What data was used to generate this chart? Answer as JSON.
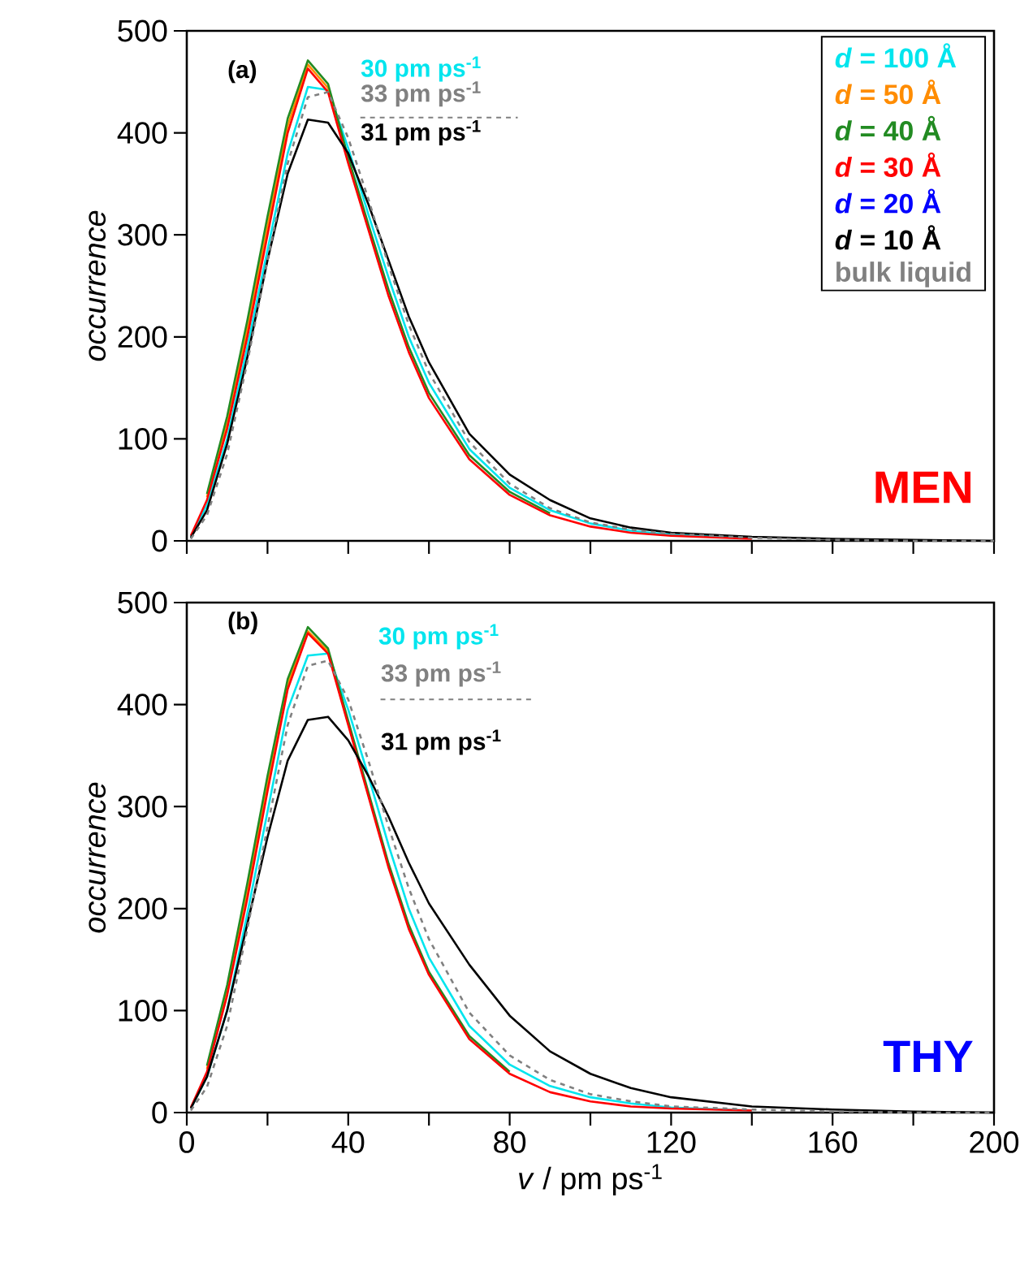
{
  "chart_data": [
    {
      "type": "line",
      "ylabel": "occurrence",
      "x": [
        1,
        5,
        10,
        15,
        20,
        25,
        30,
        35,
        40,
        45,
        50,
        55,
        60,
        70,
        80,
        90,
        100,
        110,
        120,
        140,
        160,
        180,
        200
      ],
      "xlim": [
        0,
        200
      ],
      "ylim": [
        0,
        500
      ],
      "xticks": [
        0,
        {
          "value": 20,
          "label": null
        },
        40,
        {
          "value": 60,
          "label": null
        },
        80,
        {
          "value": 100,
          "label": null
        },
        120,
        {
          "value": 140,
          "label": null
        },
        160,
        {
          "value": 180,
          "label": null
        },
        200
      ],
      "yticks": [
        0,
        100,
        200,
        300,
        400,
        500
      ],
      "tick_labels": "y",
      "legend": "top right",
      "annotations": [
        "(a)",
        "30 pm ps$^{-1}$",
        "33 pm ps$^{-1}$",
        "31 pm ps$^{-1}$",
        "MEN"
      ],
      "series": [
        {
          "name": "*d* = 100 Å",
          "color": "#00e5ee",
          "values": [
            4,
            35,
            100,
            190,
            285,
            380,
            445,
            442,
            385,
            320,
            258,
            200,
            155,
            90,
            52,
            30,
            17,
            10,
            6,
            3,
            null,
            null,
            null
          ]
        },
        {
          "name": "*d* = 50 Å",
          "color": "#ff8c00",
          "values": [
            null,
            43,
            116,
            208,
            309,
            407,
            467,
            444,
            373,
            null,
            null,
            null,
            null,
            null,
            null,
            null,
            null,
            null,
            null,
            null,
            null,
            null,
            null
          ]
        },
        {
          "name": "*d* = 40 Å",
          "color": "#228b22",
          "values": [
            null,
            46,
            122,
            216,
            318,
            414,
            471,
            448,
            376,
            310,
            246,
            190,
            145,
            84,
            48,
            27,
            null,
            null,
            null,
            null,
            null,
            null,
            null
          ]
        },
        {
          "name": "*d* = 30 Å",
          "color": "#ff0000",
          "values": [
            5,
            40,
            110,
            200,
            300,
            400,
            463,
            440,
            370,
            305,
            240,
            185,
            140,
            80,
            45,
            25,
            14,
            8,
            5,
            2,
            null,
            null,
            null
          ]
        },
        {
          "name": "*d* = 20 Å",
          "color": "#0000ff",
          "values": [
            null,
            null,
            null,
            null,
            null,
            null,
            null,
            null,
            null,
            null,
            null,
            null,
            null,
            null,
            null,
            null,
            null,
            null,
            null,
            null,
            null,
            null,
            null
          ]
        },
        {
          "name": "*d* = 10 Å",
          "color": "#000000",
          "values": [
            3,
            30,
            95,
            180,
            275,
            360,
            413,
            410,
            380,
            330,
            275,
            220,
            175,
            105,
            65,
            40,
            22,
            13,
            8,
            4,
            2,
            1,
            0
          ]
        },
        {
          "name": "bulk liquid",
          "color": "#808080",
          "line_style": "dashed",
          "values": [
            2,
            25,
            85,
            175,
            275,
            370,
            435,
            440,
            395,
            335,
            270,
            212,
            165,
            97,
            56,
            32,
            18,
            11,
            7,
            3,
            1,
            0,
            0
          ]
        }
      ]
    },
    {
      "type": "line",
      "xlabel": "*v* / pm ps$^{-1}$",
      "ylabel": "occurrence",
      "x": [
        1,
        5,
        10,
        15,
        20,
        25,
        30,
        35,
        40,
        45,
        50,
        55,
        60,
        70,
        80,
        90,
        100,
        110,
        120,
        140,
        160,
        180,
        200
      ],
      "xlim": [
        0,
        200
      ],
      "ylim": [
        0,
        500
      ],
      "xticks": [
        0,
        {
          "value": 20,
          "label": null
        },
        40,
        {
          "value": 60,
          "label": null
        },
        80,
        {
          "value": 100,
          "label": null
        },
        120,
        {
          "value": 140,
          "label": null
        },
        160,
        {
          "value": 180,
          "label": null
        },
        200
      ],
      "yticks": [
        0,
        100,
        200,
        300,
        400,
        500
      ],
      "annotations": [
        "(b)",
        "30 pm ps$^{-1}$",
        "33 pm ps$^{-1}$",
        "31 pm ps$^{-1}$",
        "THY"
      ],
      "series": [
        {
          "color": "#00e5ee",
          "values": [
            4,
            35,
            100,
            195,
            295,
            395,
            448,
            450,
            395,
            330,
            262,
            200,
            152,
            85,
            47,
            26,
            15,
            9,
            5,
            2,
            null,
            null,
            null
          ]
        },
        {
          "color": "#ff8c00",
          "values": [
            null,
            43,
            120,
            217,
            322,
            420,
            472,
            452,
            382,
            null,
            null,
            null,
            null,
            null,
            null,
            null,
            null,
            null,
            null,
            null,
            null,
            null,
            null
          ]
        },
        {
          "color": "#228b22",
          "values": [
            null,
            46,
            125,
            225,
            330,
            425,
            476,
            455,
            384,
            314,
            244,
            184,
            138,
            75,
            40,
            null,
            null,
            null,
            null,
            null,
            null,
            null,
            null
          ]
        },
        {
          "color": "#ff0000",
          "values": [
            5,
            40,
            115,
            210,
            315,
            415,
            470,
            450,
            380,
            310,
            240,
            180,
            135,
            72,
            38,
            20,
            11,
            6,
            4,
            2,
            null,
            null,
            null
          ]
        },
        {
          "color": "#0000ff",
          "values": [
            null,
            null,
            null,
            null,
            null,
            null,
            null,
            null,
            null,
            null,
            null,
            null,
            null,
            null,
            null,
            null,
            null,
            null,
            null,
            null,
            null,
            null,
            null
          ]
        },
        {
          "color": "#000000",
          "values": [
            4,
            35,
            100,
            185,
            270,
            345,
            385,
            388,
            365,
            330,
            290,
            245,
            205,
            145,
            95,
            60,
            38,
            24,
            15,
            6,
            3,
            1,
            0
          ]
        },
        {
          "color": "#808080",
          "line_style": "dashed",
          "values": [
            2,
            25,
            85,
            180,
            280,
            380,
            438,
            443,
            405,
            345,
            280,
            220,
            170,
            98,
            56,
            32,
            18,
            11,
            6,
            3,
            1,
            0,
            0
          ]
        }
      ]
    }
  ]
}
